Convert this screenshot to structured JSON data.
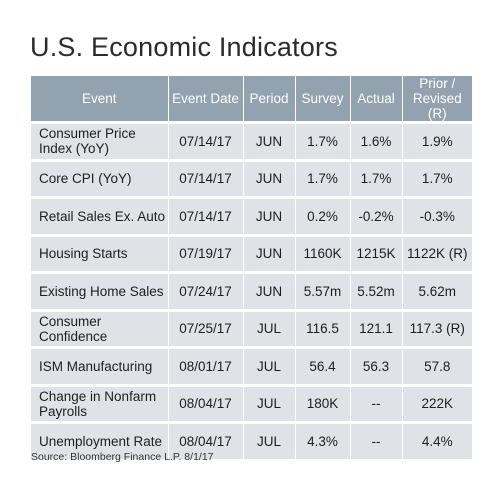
{
  "title": "U.S. Economic Indicators",
  "headers": {
    "event": "Event",
    "date": "Event Date",
    "period": "Period",
    "survey": "Survey",
    "actual": "Actual",
    "prior": "Prior / Revised (R)"
  },
  "rows": [
    {
      "event": "Consumer Price Index (YoY)",
      "date": "07/14/17",
      "period": "JUN",
      "survey": "1.7%",
      "actual": "1.6%",
      "prior": "1.9%"
    },
    {
      "event": "Core CPI (YoY)",
      "date": "07/14/17",
      "period": "JUN",
      "survey": "1.7%",
      "actual": "1.7%",
      "prior": "1.7%"
    },
    {
      "event": "Retail Sales Ex. Auto",
      "date": "07/14/17",
      "period": "JUN",
      "survey": "0.2%",
      "actual": "-0.2%",
      "prior": "-0.3%"
    },
    {
      "event": "Housing Starts",
      "date": "07/19/17",
      "period": "JUN",
      "survey": "1160K",
      "actual": "1215K",
      "prior": "1122K (R)"
    },
    {
      "event": "Existing Home Sales",
      "date": "07/24/17",
      "period": "JUN",
      "survey": "5.57m",
      "actual": "5.52m",
      "prior": "5.62m"
    },
    {
      "event": "Consumer Confidence",
      "date": "07/25/17",
      "period": "JUL",
      "survey": "116.5",
      "actual": "121.1",
      "prior": "117.3 (R)"
    },
    {
      "event": "ISM Manufacturing",
      "date": "08/01/17",
      "period": "JUL",
      "survey": "56.4",
      "actual": "56.3",
      "prior": "57.8"
    },
    {
      "event": "Change in Nonfarm Payrolls",
      "date": "08/04/17",
      "period": "JUL",
      "survey": "180K",
      "actual": "--",
      "prior": "222K"
    },
    {
      "event": "Unemployment Rate",
      "date": "08/04/17",
      "period": "JUL",
      "survey": "4.3%",
      "actual": "--",
      "prior": "4.4%"
    }
  ],
  "source": "Source: Bloomberg Finance L.P. 8/1/17",
  "colors": {
    "header_bg": "#93a2af",
    "row_bg": "#dfe3e7"
  }
}
